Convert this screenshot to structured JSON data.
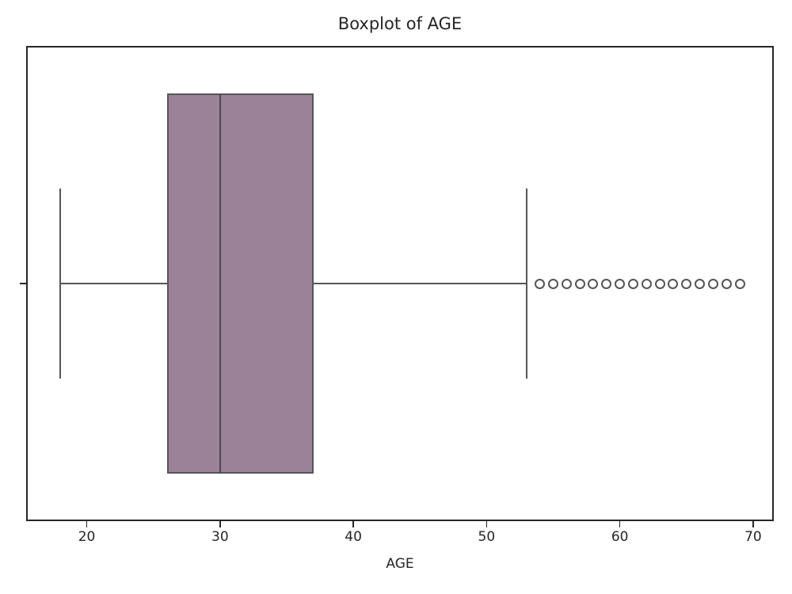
{
  "chart_data": {
    "type": "boxplot",
    "orientation": "horizontal",
    "title": "Boxplot of AGE",
    "xlabel": "AGE",
    "variable": "AGE",
    "stats": {
      "whisker_low": 18,
      "q1": 26,
      "median": 30,
      "q3": 37,
      "whisker_high": 53,
      "outliers": [
        54,
        55,
        56,
        57,
        58,
        59,
        60,
        61,
        62,
        63,
        64,
        65,
        66,
        67,
        68,
        69
      ]
    },
    "xlim": [
      15.45,
      71.55
    ],
    "xticks": [
      20,
      30,
      40,
      50,
      60,
      70
    ],
    "grid": false,
    "legend": null,
    "colors": {
      "box_fill": "#9c8298",
      "line": "#565656",
      "median_line": "#4a4a4a",
      "spine": "#262626",
      "text": "#262626",
      "outlier_ring": "#555555",
      "background": "#ffffff"
    }
  }
}
